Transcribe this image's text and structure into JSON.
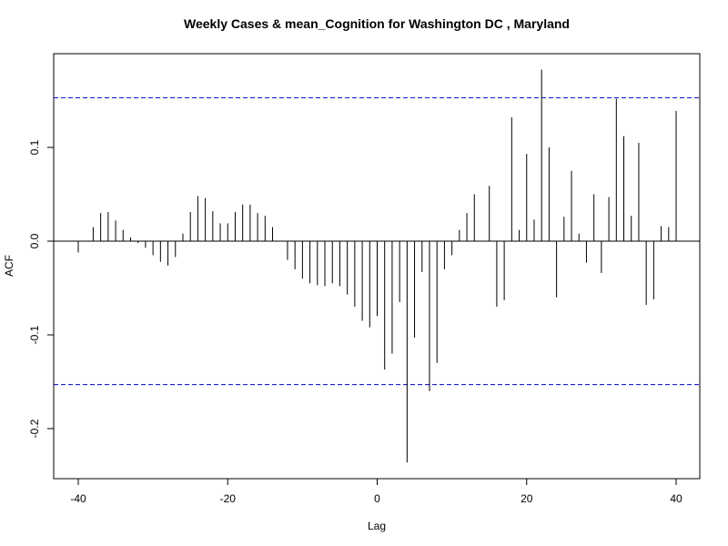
{
  "chart_data": {
    "type": "bar",
    "title": "Weekly Cases & mean_Cognition for Washington DC , Maryland",
    "xlabel": "Lag",
    "ylabel": "ACF",
    "xlim": [
      -40,
      40
    ],
    "ylim": [
      -0.25,
      0.2
    ],
    "xticks": [
      -40,
      -20,
      0,
      20,
      40
    ],
    "xtick_labels": [
      "-40",
      "-20",
      "0",
      "20",
      "40"
    ],
    "yticks": [
      -0.2,
      -0.1,
      0.0,
      0.1
    ],
    "ytick_labels": [
      "-0.2",
      "-0.1",
      "0.0",
      "0.1"
    ],
    "confidence_bounds": [
      0.153,
      -0.153
    ],
    "colors": {
      "bars": "#000000",
      "confidence_line": "#0000cc",
      "zero_line": "#000000",
      "frame": "#000000"
    },
    "grid": false,
    "legend": "none",
    "x": [
      -40,
      -39,
      -38,
      -37,
      -36,
      -35,
      -34,
      -33,
      -32,
      -31,
      -30,
      -29,
      -28,
      -27,
      -26,
      -25,
      -24,
      -23,
      -22,
      -21,
      -20,
      -19,
      -18,
      -17,
      -16,
      -15,
      -14,
      -13,
      -12,
      -11,
      -10,
      -9,
      -8,
      -7,
      -6,
      -5,
      -4,
      -3,
      -2,
      -1,
      0,
      1,
      2,
      3,
      4,
      5,
      6,
      7,
      8,
      9,
      10,
      11,
      12,
      13,
      14,
      15,
      16,
      17,
      18,
      19,
      20,
      21,
      22,
      23,
      24,
      25,
      26,
      27,
      28,
      29,
      30,
      31,
      32,
      33,
      34,
      35,
      36,
      37,
      38,
      39,
      40
    ],
    "values": [
      -0.012,
      0.0,
      0.015,
      0.03,
      0.031,
      0.022,
      0.012,
      0.004,
      -0.002,
      -0.007,
      -0.015,
      -0.022,
      -0.026,
      -0.017,
      0.008,
      0.031,
      0.048,
      0.046,
      0.032,
      0.019,
      0.019,
      0.031,
      0.039,
      0.039,
      0.03,
      0.027,
      0.015,
      0.0,
      -0.02,
      -0.03,
      -0.04,
      -0.045,
      -0.047,
      -0.048,
      -0.045,
      -0.048,
      -0.057,
      -0.07,
      -0.085,
      -0.092,
      -0.08,
      -0.137,
      -0.12,
      -0.065,
      -0.236,
      -0.103,
      -0.033,
      -0.16,
      -0.13,
      -0.03,
      -0.015,
      0.012,
      0.03,
      0.05,
      0.0,
      0.059,
      -0.07,
      -0.063,
      0.132,
      0.012,
      0.093,
      0.023,
      0.183,
      0.1,
      -0.06,
      0.026,
      0.075,
      0.008,
      -0.023,
      0.05,
      -0.034,
      0.047,
      0.152,
      0.112,
      0.027,
      0.105,
      -0.068,
      -0.062,
      0.016,
      0.015,
      0.139
    ]
  }
}
